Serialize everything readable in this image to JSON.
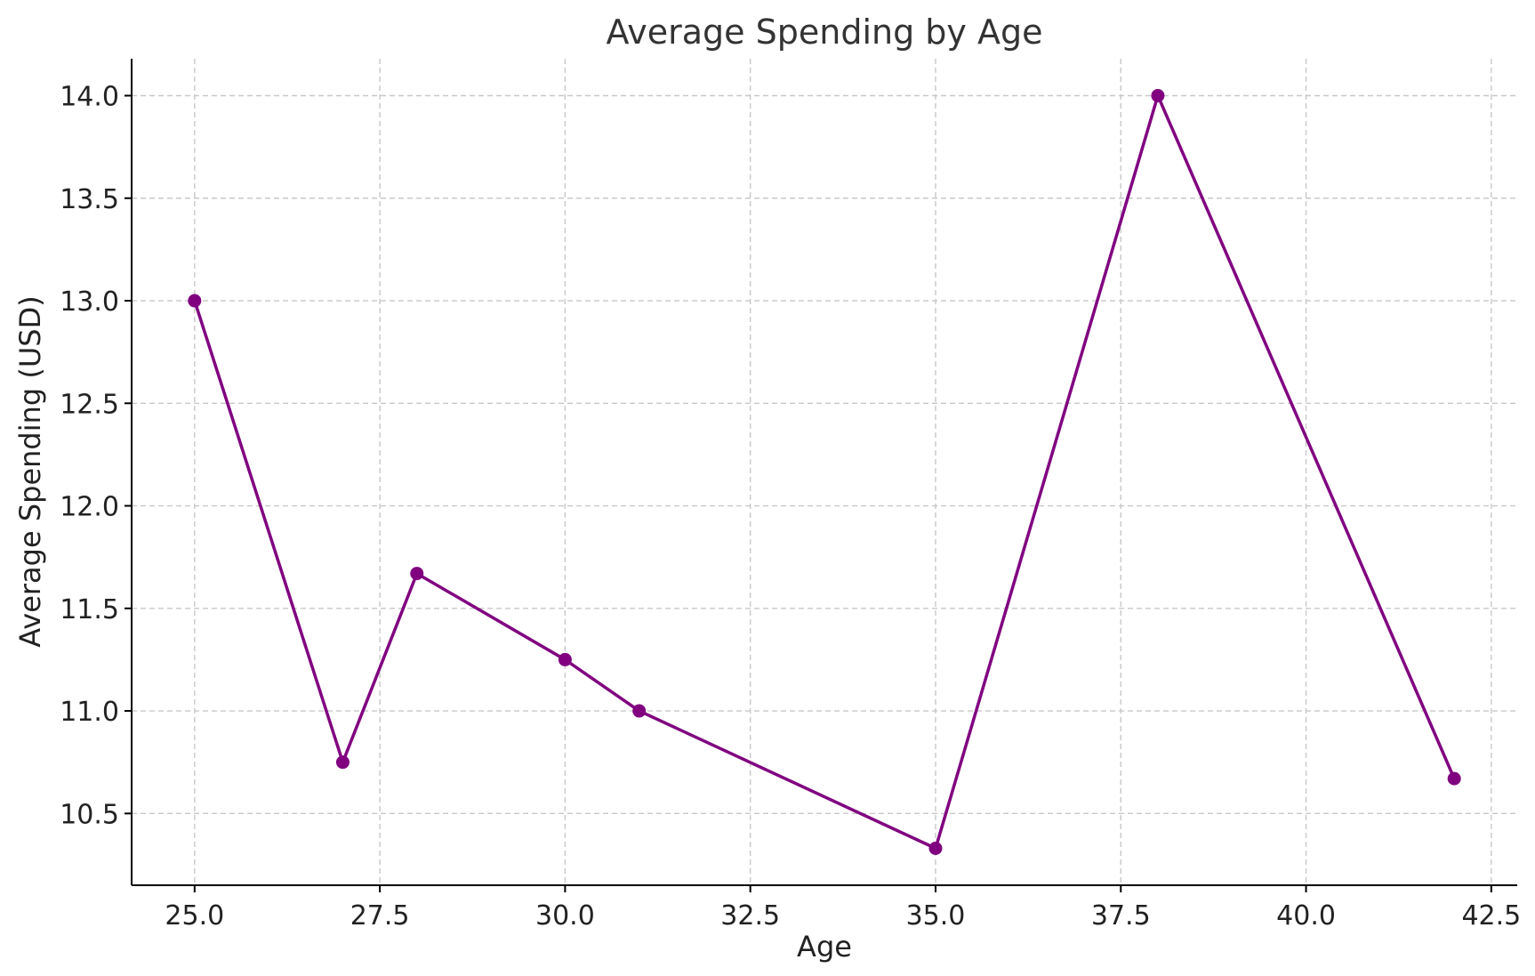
{
  "chart_data": {
    "type": "line",
    "title": "Average Spending by Age",
    "xlabel": "Age",
    "ylabel": "Average Spending (USD)",
    "xlim": [
      24.15,
      42.85
    ],
    "ylim": [
      10.15,
      14.18
    ],
    "x_ticks": [
      25.0,
      27.5,
      30.0,
      32.5,
      35.0,
      37.5,
      40.0,
      42.5
    ],
    "x_tick_labels": [
      "25.0",
      "27.5",
      "30.0",
      "32.5",
      "35.0",
      "37.5",
      "40.0",
      "42.5"
    ],
    "y_ticks": [
      10.5,
      11.0,
      11.5,
      12.0,
      12.5,
      13.0,
      13.5,
      14.0
    ],
    "y_tick_labels": [
      "10.5",
      "11.0",
      "11.5",
      "12.0",
      "12.5",
      "13.0",
      "13.5",
      "14.0"
    ],
    "grid": true,
    "series": [
      {
        "color": "#800080",
        "marker": "circle",
        "x": [
          25,
          27,
          28,
          30,
          31,
          35,
          38,
          42
        ],
        "y": [
          13.0,
          10.75,
          11.67,
          11.25,
          11.0,
          10.33,
          14.0,
          10.67
        ]
      }
    ]
  }
}
